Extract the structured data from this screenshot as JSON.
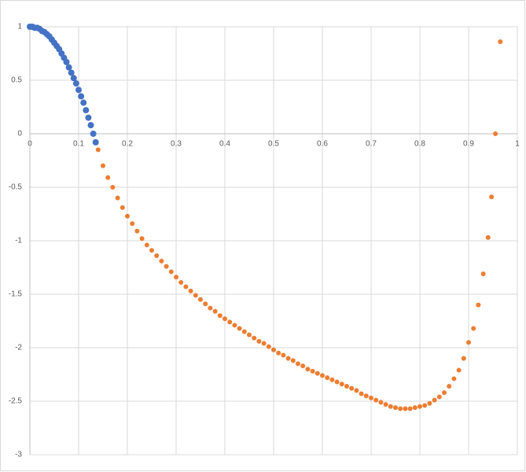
{
  "chart_data": {
    "type": "scatter",
    "grid": true,
    "xlim": [
      0,
      1
    ],
    "xticks": [
      0,
      0.1,
      0.2,
      0.3,
      0.4,
      0.5,
      0.6,
      0.7,
      0.8,
      0.9,
      1
    ],
    "ylim": [
      -3,
      1
    ],
    "yticks": [
      1,
      0.5,
      0,
      -0.5,
      -1,
      -1.5,
      -2,
      -2.5,
      -3
    ],
    "series": [
      {
        "color": "#4472c4",
        "x": [
          0,
          0.005,
          0.01,
          0.015,
          0.02,
          0.025,
          0.03,
          0.035,
          0.04,
          0.045,
          0.05,
          0.055,
          0.06,
          0.065,
          0.07,
          0.075,
          0.08,
          0.085,
          0.09,
          0.095,
          0.1,
          0.105,
          0.11,
          0.115,
          0.12,
          0.125,
          0.13,
          0.135
        ],
        "values": [
          1,
          1,
          0.99,
          0.99,
          0.98,
          0.96,
          0.95,
          0.93,
          0.91,
          0.88,
          0.85,
          0.82,
          0.79,
          0.75,
          0.71,
          0.67,
          0.62,
          0.57,
          0.52,
          0.47,
          0.41,
          0.35,
          0.29,
          0.22,
          0.15,
          0.08,
          0,
          -0.08
        ]
      },
      {
        "color": "#ed7d31",
        "x": [
          0.14,
          0.15,
          0.16,
          0.17,
          0.18,
          0.19,
          0.2,
          0.21,
          0.22,
          0.23,
          0.24,
          0.25,
          0.26,
          0.27,
          0.28,
          0.29,
          0.3,
          0.31,
          0.32,
          0.33,
          0.34,
          0.35,
          0.36,
          0.37,
          0.38,
          0.39,
          0.4,
          0.41,
          0.42,
          0.43,
          0.44,
          0.45,
          0.46,
          0.47,
          0.48,
          0.49,
          0.5,
          0.51,
          0.52,
          0.53,
          0.54,
          0.55,
          0.56,
          0.57,
          0.58,
          0.59,
          0.6,
          0.61,
          0.62,
          0.63,
          0.64,
          0.65,
          0.66,
          0.67,
          0.68,
          0.69,
          0.7,
          0.71,
          0.72,
          0.73,
          0.74,
          0.75,
          0.76,
          0.77,
          0.78,
          0.79,
          0.8,
          0.81,
          0.82,
          0.83,
          0.84,
          0.85,
          0.86,
          0.87,
          0.88,
          0.89,
          0.9,
          0.91,
          0.92,
          0.93,
          0.94,
          0.947,
          0.955,
          0.965
        ],
        "values": [
          -0.15,
          -0.3,
          -0.41,
          -0.5,
          -0.6,
          -0.69,
          -0.77,
          -0.84,
          -0.91,
          -0.98,
          -1.04,
          -1.09,
          -1.14,
          -1.19,
          -1.24,
          -1.29,
          -1.34,
          -1.39,
          -1.43,
          -1.47,
          -1.51,
          -1.55,
          -1.59,
          -1.63,
          -1.66,
          -1.7,
          -1.73,
          -1.76,
          -1.79,
          -1.82,
          -1.85,
          -1.88,
          -1.91,
          -1.94,
          -1.96,
          -1.99,
          -2.02,
          -2.05,
          -2.07,
          -2.1,
          -2.12,
          -2.15,
          -2.17,
          -2.2,
          -2.22,
          -2.24,
          -2.26,
          -2.28,
          -2.3,
          -2.32,
          -2.34,
          -2.36,
          -2.38,
          -2.4,
          -2.43,
          -2.45,
          -2.47,
          -2.49,
          -2.51,
          -2.53,
          -2.55,
          -2.56,
          -2.57,
          -2.57,
          -2.57,
          -2.56,
          -2.55,
          -2.54,
          -2.52,
          -2.49,
          -2.46,
          -2.42,
          -2.36,
          -2.29,
          -2.21,
          -2.1,
          -1.95,
          -1.82,
          -1.6,
          -1.31,
          -0.97,
          -0.59,
          0,
          0.86
        ]
      }
    ]
  }
}
